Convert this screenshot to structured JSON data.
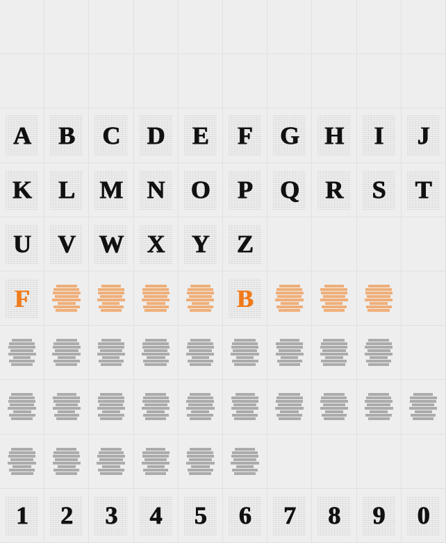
{
  "grid": {
    "cols": 10,
    "rows": 10,
    "cell_bg": "#eeeeee",
    "page_bg": "#e8e8e8",
    "border_color": "#e0e0e0",
    "accent_color": "#f07a1a",
    "glyph_color": "#111111",
    "glyph_fontsize": 36
  },
  "rows": [
    {
      "type": "empty",
      "count": 10
    },
    {
      "type": "empty",
      "count": 10
    },
    {
      "type": "glyphs",
      "color": "black",
      "chars": [
        "A",
        "B",
        "C",
        "D",
        "E",
        "F",
        "G",
        "H",
        "I",
        "J"
      ]
    },
    {
      "type": "glyphs",
      "color": "black",
      "chars": [
        "K",
        "L",
        "M",
        "N",
        "O",
        "P",
        "Q",
        "R",
        "S",
        "T"
      ]
    },
    {
      "type": "glyphs",
      "color": "black",
      "padEnd": 4,
      "chars": [
        "U",
        "V",
        "W",
        "X",
        "Y",
        "Z"
      ]
    },
    {
      "type": "mixed",
      "color": "orange",
      "cells": [
        {
          "kind": "glyph",
          "char": "F"
        },
        {
          "kind": "scrap"
        },
        {
          "kind": "scrap"
        },
        {
          "kind": "scrap"
        },
        {
          "kind": "scrap"
        },
        {
          "kind": "glyph",
          "char": "B"
        },
        {
          "kind": "scrap"
        },
        {
          "kind": "scrap"
        },
        {
          "kind": "scrap"
        },
        {
          "kind": "empty"
        }
      ]
    },
    {
      "type": "scraps",
      "color": "black",
      "count": 9,
      "padEnd": 1
    },
    {
      "type": "scraps",
      "color": "black",
      "count": 10
    },
    {
      "type": "scraps",
      "color": "black",
      "count": 6,
      "padEnd": 4
    },
    {
      "type": "glyphs",
      "color": "black",
      "chars": [
        "1",
        "2",
        "3",
        "4",
        "5",
        "6",
        "7",
        "8",
        "9",
        "0"
      ]
    }
  ],
  "scrap_line_widths": [
    [
      70,
      85,
      92,
      80,
      95,
      60,
      88,
      72
    ],
    [
      65,
      90,
      88,
      75,
      92,
      58,
      84,
      70
    ],
    [
      72,
      88,
      90,
      78,
      94,
      62,
      86,
      74
    ],
    [
      68,
      86,
      91,
      76,
      93,
      59,
      85,
      71
    ]
  ]
}
